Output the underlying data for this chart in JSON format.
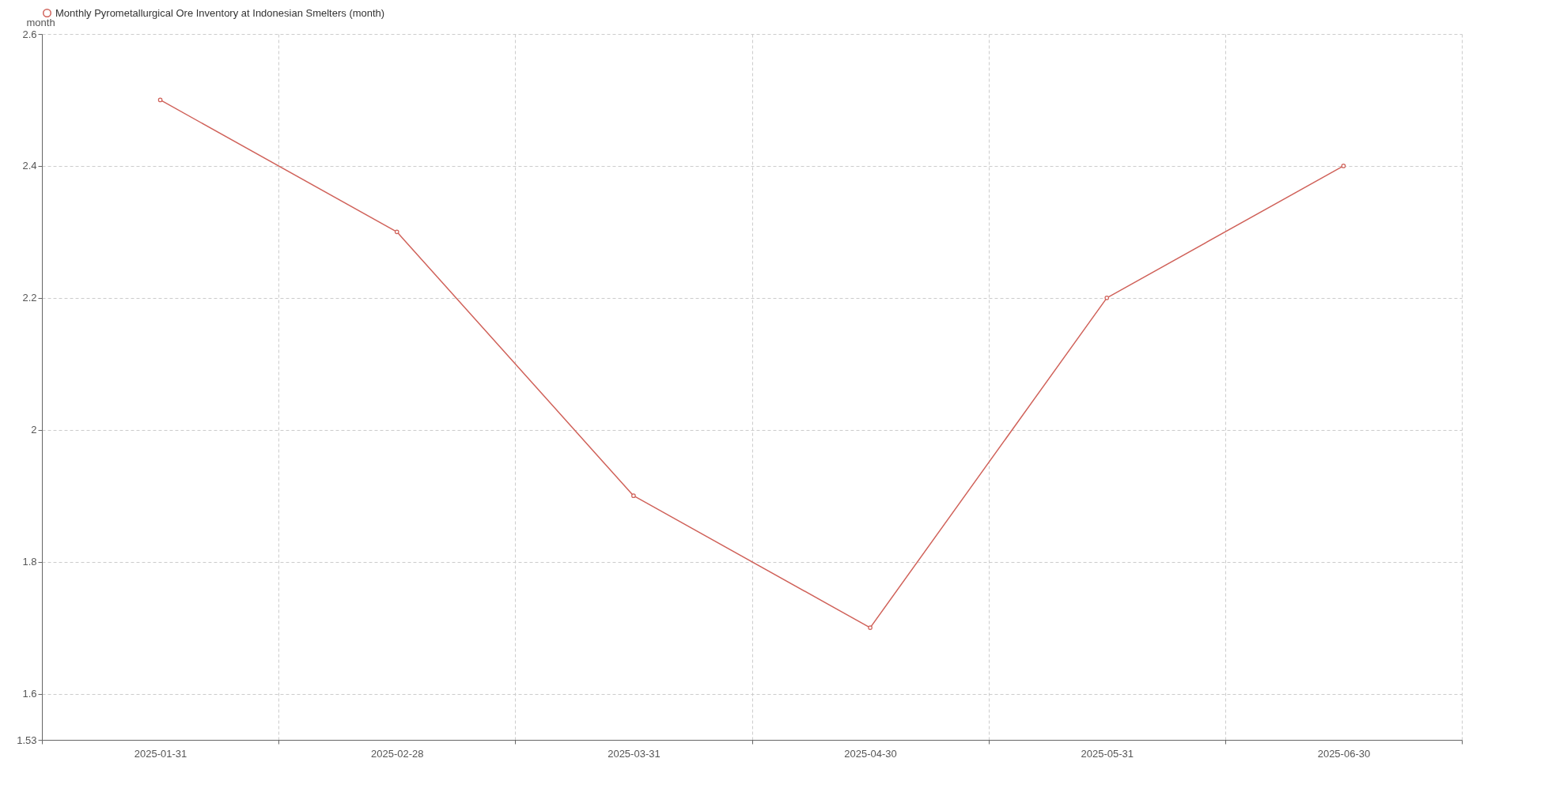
{
  "chart_data": {
    "type": "line",
    "ylabel": "month",
    "categories": [
      "2025-01-31",
      "2025-02-28",
      "2025-03-31",
      "2025-04-30",
      "2025-05-31",
      "2025-06-30"
    ],
    "series": [
      {
        "name": "Monthly Pyrometallurgical Ore Inventory at Indonesian Smelters  (month)",
        "color": "#d0625a",
        "values": [
          2.5,
          2.3,
          1.9,
          1.7,
          2.2,
          2.4
        ]
      }
    ],
    "ylim": [
      1.53,
      2.6
    ],
    "yticks": [
      1.53,
      1.6,
      1.8,
      2,
      2.2,
      2.4,
      2.6
    ],
    "grid": true,
    "legend": "top",
    "marker": "circle",
    "line_style": "solid"
  }
}
